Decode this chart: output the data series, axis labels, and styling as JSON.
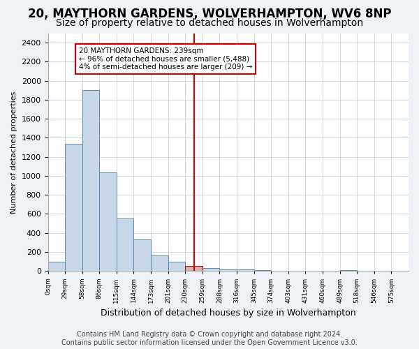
{
  "title": "20, MAYTHORN GARDENS, WOLVERHAMPTON, WV6 8NP",
  "subtitle": "Size of property relative to detached houses in Wolverhampton",
  "xlabel": "Distribution of detached houses by size in Wolverhampton",
  "ylabel": "Number of detached properties",
  "bar_values": [
    100,
    1340,
    1900,
    1040,
    550,
    330,
    165,
    100,
    50,
    30,
    20,
    15,
    10,
    5,
    0,
    0,
    0,
    10,
    0,
    5
  ],
  "bin_labels": [
    "0sqm",
    "29sqm",
    "58sqm",
    "86sqm",
    "115sqm",
    "144sqm",
    "173sqm",
    "201sqm",
    "230sqm",
    "259sqm",
    "288sqm",
    "316sqm",
    "345sqm",
    "374sqm",
    "403sqm",
    "431sqm",
    "460sqm",
    "489sqm",
    "518sqm",
    "546sqm",
    "575sqm"
  ],
  "bar_color": "#c8d8e8",
  "bar_edge_color": "#5a8ab0",
  "property_bin_index": 8,
  "vline_color": "#cc0000",
  "annotation_text": "20 MAYTHORN GARDENS: 239sqm\n← 96% of detached houses are smaller (5,488)\n4% of semi-detached houses are larger (209) →",
  "ylim": [
    0,
    2500
  ],
  "yticks": [
    0,
    200,
    400,
    600,
    800,
    1000,
    1200,
    1400,
    1600,
    1800,
    2000,
    2200,
    2400
  ],
  "footnote": "Contains HM Land Registry data © Crown copyright and database right 2024.\nContains public sector information licensed under the Open Government Licence v3.0.",
  "background_color": "#eef2f7",
  "plot_bg_color": "#ffffff",
  "title_fontsize": 12,
  "subtitle_fontsize": 10,
  "footnote_fontsize": 7
}
